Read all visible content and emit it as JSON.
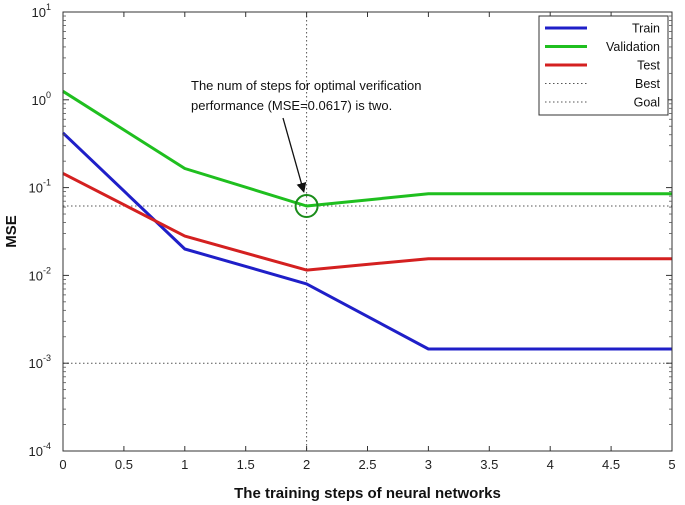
{
  "chart_data": {
    "type": "line",
    "xlabel": "The training steps of neural networks",
    "ylabel": "MSE",
    "xlim": [
      0,
      5
    ],
    "ylim": [
      0.0001,
      10
    ],
    "yscale": "log",
    "grid": false,
    "x_ticks": [
      "0",
      "0.5",
      "1",
      "1.5",
      "2",
      "2.5",
      "3",
      "3.5",
      "4",
      "4.5",
      "5"
    ],
    "x_tick_values": [
      0,
      0.5,
      1,
      1.5,
      2,
      2.5,
      3,
      3.5,
      4,
      4.5,
      5
    ],
    "y_ticks": [
      {
        "value": 10,
        "base": "10",
        "exp": "1"
      },
      {
        "value": 1,
        "base": "10",
        "exp": "0"
      },
      {
        "value": 0.1,
        "base": "10",
        "exp": "-1"
      },
      {
        "value": 0.01,
        "base": "10",
        "exp": "-2"
      },
      {
        "value": 0.001,
        "base": "10",
        "exp": "-3"
      },
      {
        "value": 0.0001,
        "base": "10",
        "exp": "-4"
      }
    ],
    "legend_position": "top-right",
    "series": [
      {
        "name": "Train",
        "color": "#1f1fc8",
        "style": "solid",
        "x": [
          0,
          1,
          2,
          3,
          4,
          5
        ],
        "y": [
          0.42,
          0.02,
          0.008,
          0.00145,
          0.00145,
          0.00145
        ]
      },
      {
        "name": "Validation",
        "color": "#1fbf1f",
        "style": "solid",
        "x": [
          0,
          1,
          2,
          3,
          4,
          5
        ],
        "y": [
          1.25,
          0.165,
          0.0617,
          0.085,
          0.085,
          0.085
        ]
      },
      {
        "name": "Test",
        "color": "#d42020",
        "style": "solid",
        "x": [
          0,
          1,
          2,
          3,
          4,
          5
        ],
        "y": [
          0.145,
          0.028,
          0.0115,
          0.0155,
          0.0155,
          0.0155
        ]
      }
    ],
    "reference_lines": [
      {
        "name": "Best",
        "style": "dotted",
        "color": "#555555",
        "orientation": "vertical",
        "x": 2,
        "y": 0.0617
      },
      {
        "name": "Goal",
        "style": "dotted",
        "color": "#555555",
        "orientation": "horizontal",
        "y": 0.001
      }
    ],
    "best_marker": {
      "x": 2,
      "y": 0.0617,
      "color": "#1a8c1a"
    },
    "annotation": {
      "lines": [
        "The num of steps for optimal verification",
        "performance (MSE=0.0617) is two."
      ],
      "arrow_to": {
        "x": 2,
        "y": 0.0617
      }
    }
  }
}
